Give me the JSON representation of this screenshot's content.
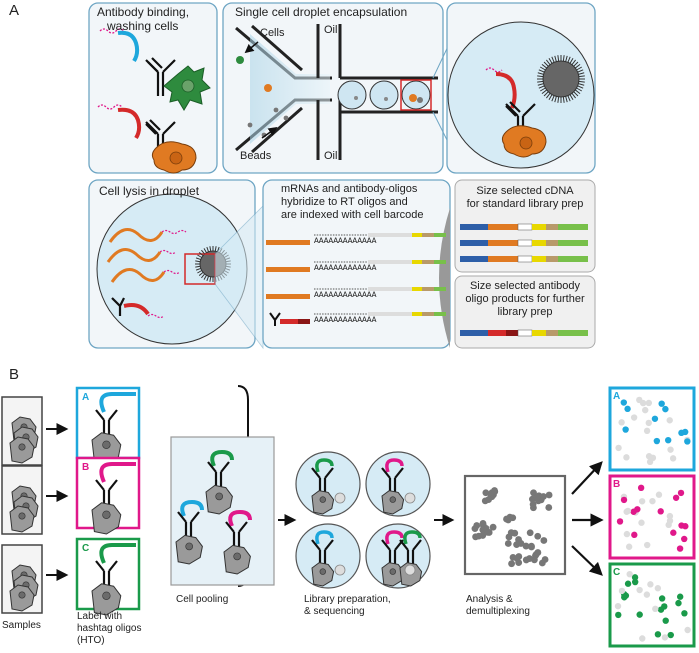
{
  "panel_a": {
    "letter": "A",
    "antibody_binding": [
      "Antibody binding,",
      "washing cells"
    ],
    "droplet_encapsulation": "Single cell droplet encapsulation",
    "cells": "Cells",
    "beads": "Beads",
    "oil_top": "Oil",
    "oil_bottom": "Oil",
    "cell_lysis": "Cell lysis in droplet",
    "hybridize": [
      "mRNAs and antibody-oligos",
      "hybridize to RT oligos and",
      "are indexed with cell barcode"
    ],
    "cdna": [
      "Size selected cDNA",
      "for standard library prep"
    ],
    "antibody_oligo": [
      "Size selected antibody",
      "oligo products for further",
      "library prep"
    ],
    "polya": "AAAAAAAAAAAAA"
  },
  "panel_b": {
    "letter": "B",
    "samples": "Samples",
    "label_hto": [
      "Label with",
      "hashtag oligos",
      "(HTO)"
    ],
    "hto_letters": [
      "A",
      "B",
      "C"
    ],
    "cell_pooling": "Cell pooling",
    "library_prep": [
      "Library preparation,",
      "& sequencing"
    ],
    "analysis": [
      "Analysis &",
      "demultiplexing"
    ],
    "out_letters": [
      "A",
      "B",
      "C"
    ]
  },
  "colors": {
    "panel_border": "#6fa6c4",
    "panel_fill": "#f2f6f9",
    "hto_a": "#1ea7dc",
    "hto_b": "#e0188a",
    "hto_c": "#1a9a4a",
    "cell_orange": "#e07a22",
    "cell_green": "#2e8b3e",
    "oligo_red": "#d42a2a",
    "droplet": "#cfe6f2",
    "cell_gray": "#9a9a9a"
  }
}
